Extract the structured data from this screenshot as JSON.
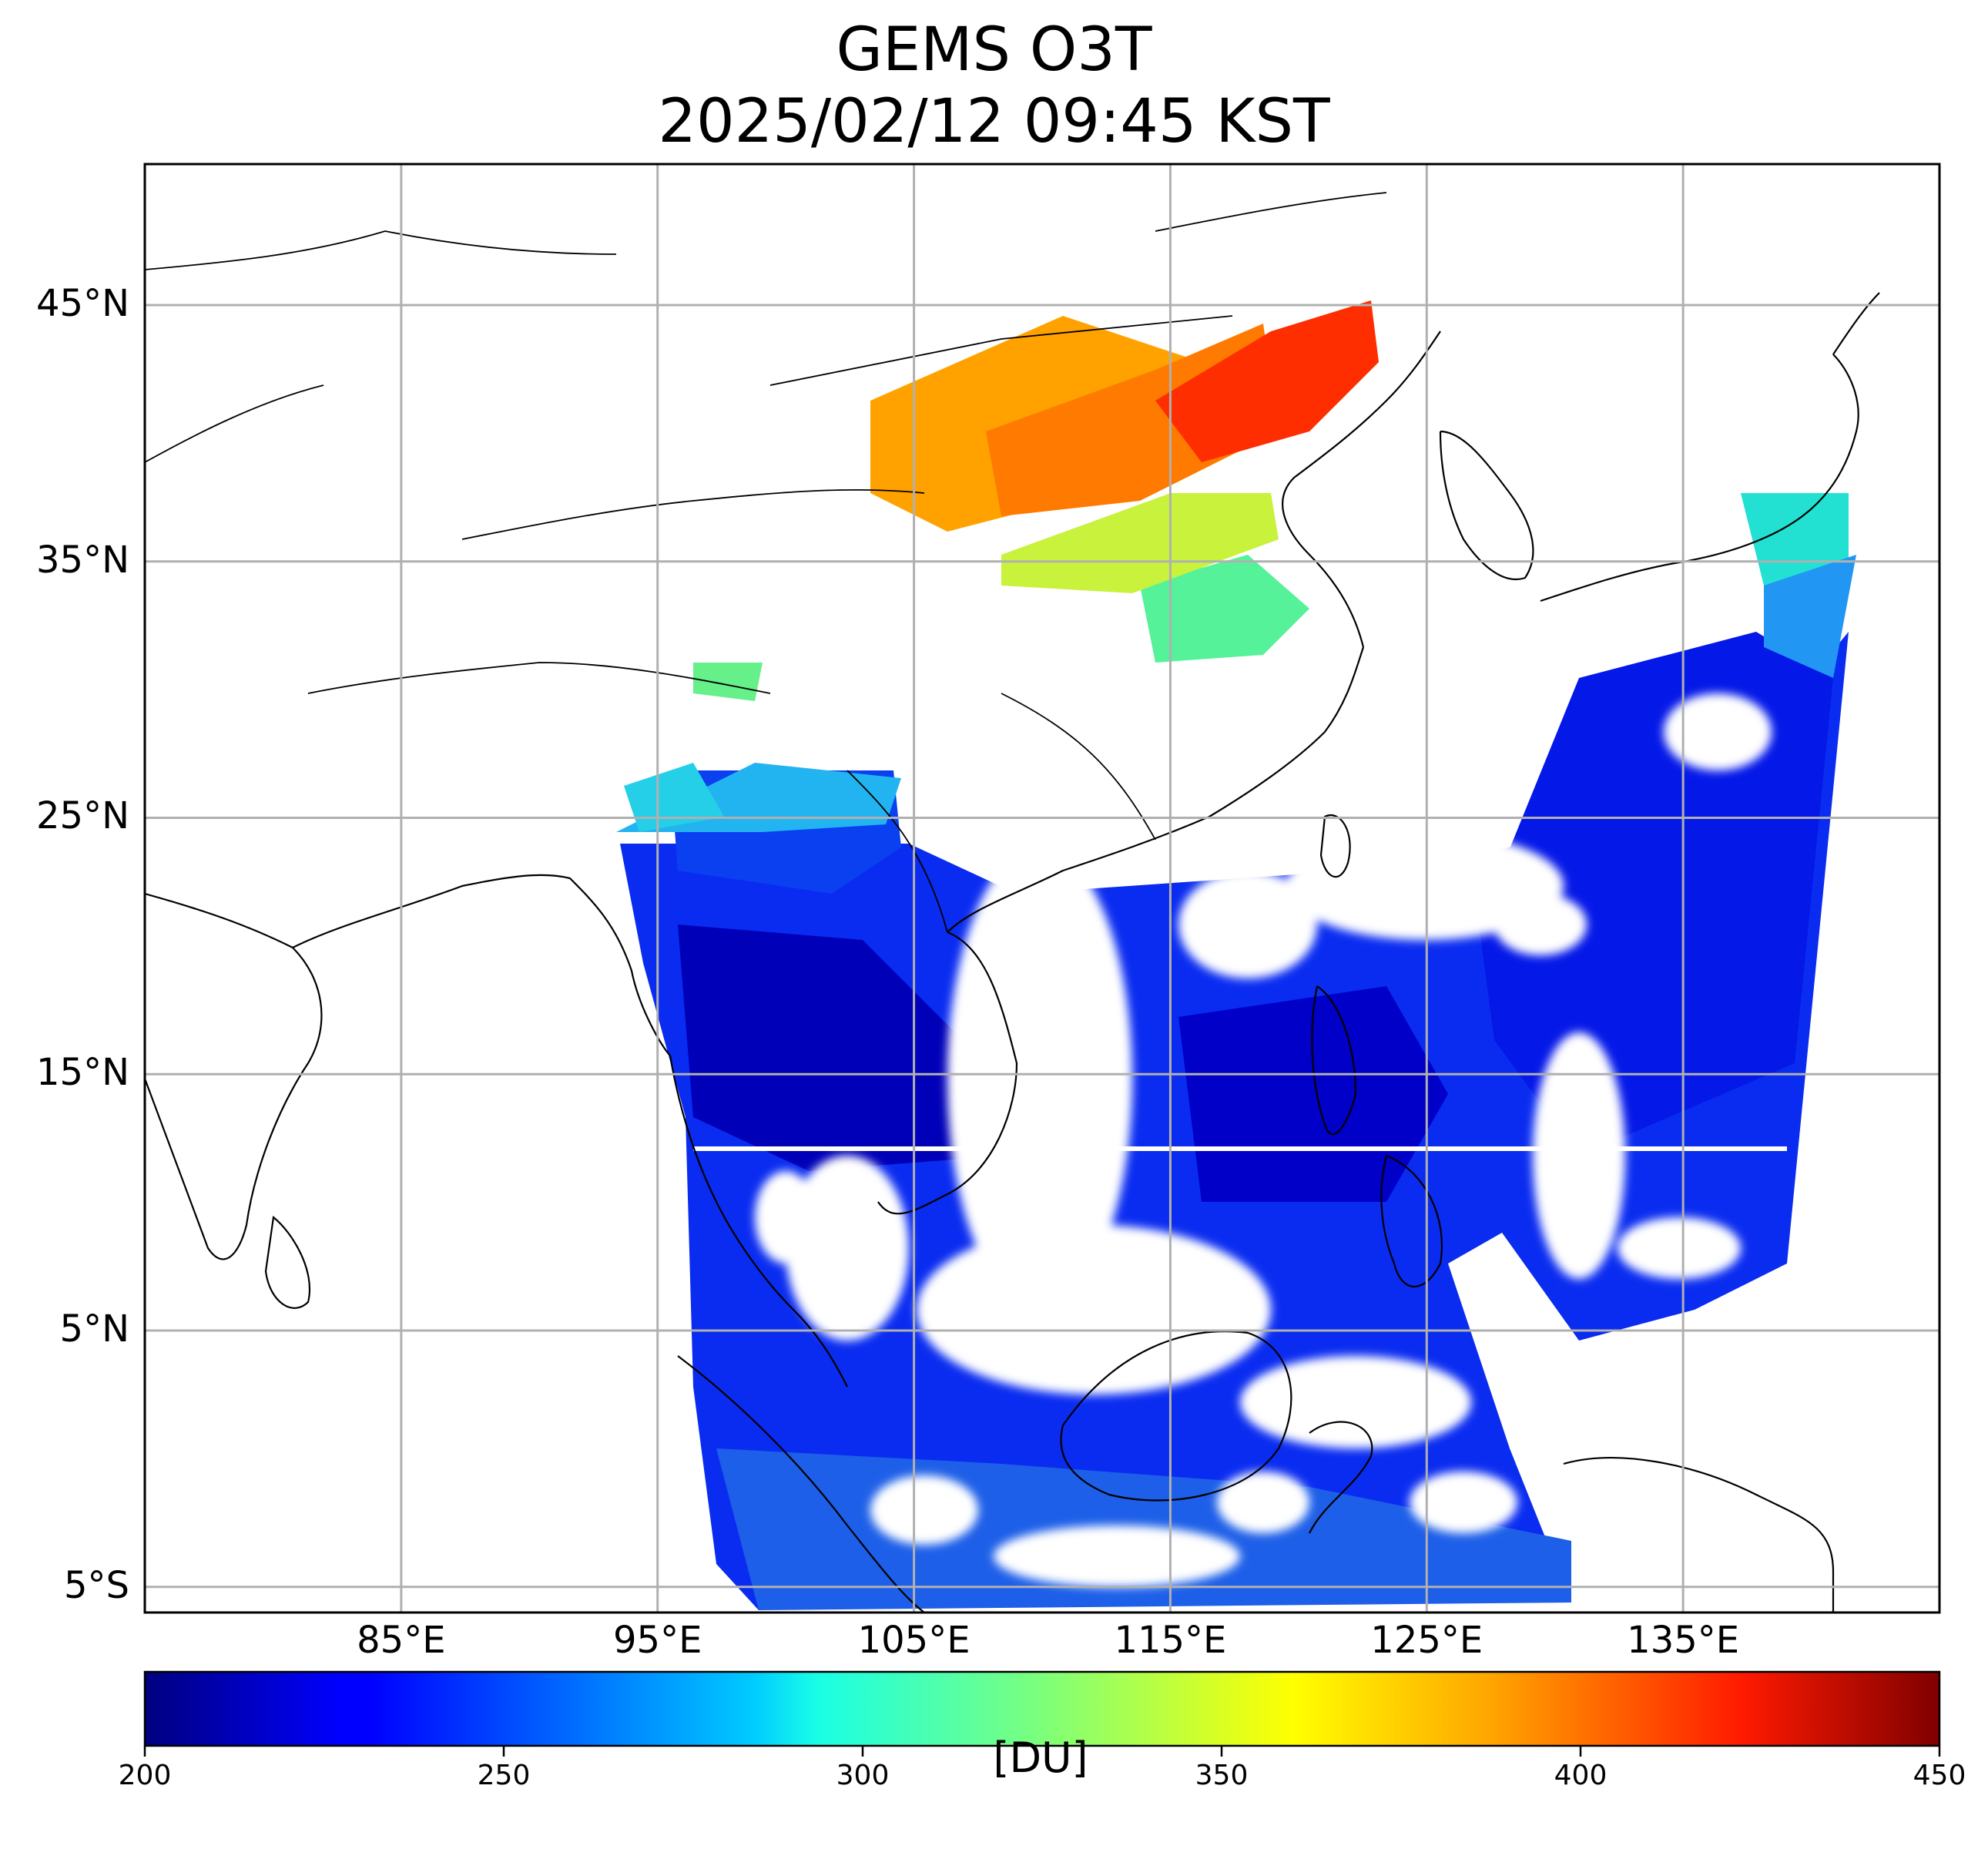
{
  "title": {
    "line1": "GEMS O3T",
    "line2": "2025/02/12 09:45 KST"
  },
  "map": {
    "lon_range": [
      75,
      145
    ],
    "lat_range": [
      -6,
      50.5
    ],
    "lat_ticks": [
      {
        "value": 45,
        "label": "45°N"
      },
      {
        "value": 35,
        "label": "35°N"
      },
      {
        "value": 25,
        "label": "25°N"
      },
      {
        "value": 15,
        "label": "15°N"
      },
      {
        "value": 5,
        "label": "5°N"
      },
      {
        "value": -5,
        "label": "5°S"
      }
    ],
    "lon_ticks": [
      {
        "value": 85,
        "label": "85°E"
      },
      {
        "value": 95,
        "label": "95°E"
      },
      {
        "value": 105,
        "label": "105°E"
      },
      {
        "value": 115,
        "label": "115°E"
      },
      {
        "value": 125,
        "label": "125°E"
      },
      {
        "value": 135,
        "label": "135°E"
      }
    ],
    "grid": true
  },
  "colorbar": {
    "colormap": "jet",
    "range": [
      200,
      450
    ],
    "ticks": [
      200,
      250,
      300,
      350,
      400,
      450
    ],
    "unit": "[DU]"
  },
  "colors": {
    "low": "#00007f",
    "blue": "#0000ff",
    "cyan": "#00ffff",
    "yellow": "#ffff00",
    "red": "#ff0000",
    "high": "#7f0000"
  }
}
